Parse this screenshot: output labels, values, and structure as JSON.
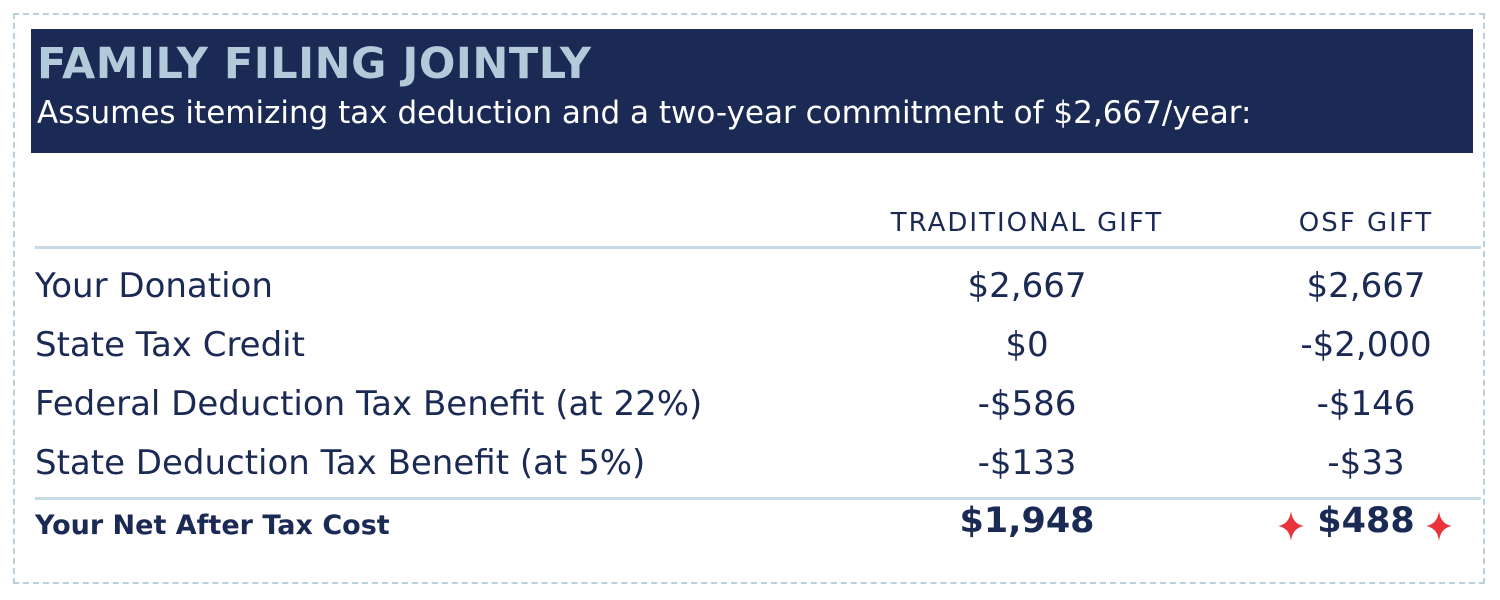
{
  "banner": {
    "title": "FAMILY FILING JOINTLY",
    "subtitle": "Assumes itemizing tax deduction and a two-year commitment of $2,667/year:"
  },
  "columns": {
    "traditional": "TRADITIONAL GIFT",
    "osf": "OSF GIFT"
  },
  "rows": [
    {
      "label": "Your Donation",
      "traditional": "$2,667",
      "osf": "$2,667"
    },
    {
      "label": "State Tax Credit",
      "traditional": "$0",
      "osf": "-$2,000"
    },
    {
      "label": "Federal Deduction Tax Benefit (at 22%)",
      "traditional": "-$586",
      "osf": "-$146"
    },
    {
      "label": "State Deduction Tax Benefit (at 5%)",
      "traditional": "-$133",
      "osf": "-$33"
    }
  ],
  "total": {
    "label": "Your Net After Tax Cost",
    "traditional": "$1,948",
    "osf": "$488"
  },
  "colors": {
    "navy": "#1b2a55",
    "light_blue": "#b3cadb",
    "rule": "#c7dae6",
    "accent_red": "#e8343a"
  },
  "icons": {
    "highlight": "sparkle-icon"
  }
}
